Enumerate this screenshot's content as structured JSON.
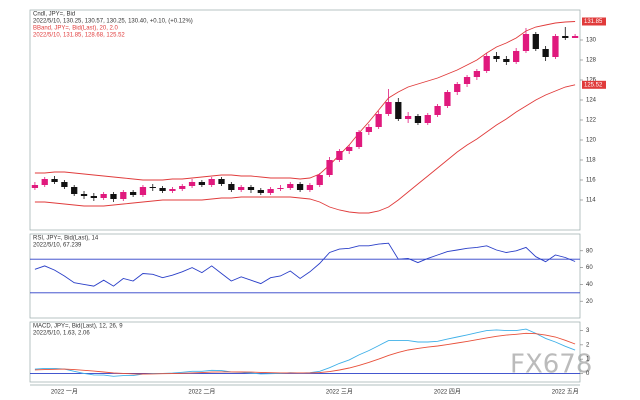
{
  "chart_data": [
    {
      "type": "candlestick",
      "title": "Cndl, JPY=, Bid",
      "subtitle": "2022/5/10, 130.25, 130.57, 130.25, 130.40, +0.10, (+0.12%)",
      "up_color": "#e0197d",
      "down_color": "#111111",
      "categories": [
        null,
        null,
        null,
        "2022 一月",
        null,
        null,
        null,
        null,
        null,
        null,
        null,
        null,
        null,
        null,
        null,
        null,
        null,
        "2022 二月",
        null,
        null,
        null,
        null,
        null,
        null,
        null,
        null,
        null,
        null,
        null,
        null,
        null,
        "2022 三月",
        null,
        null,
        null,
        null,
        null,
        null,
        null,
        null,
        null,
        null,
        "2022 四月",
        null,
        null,
        null,
        null,
        null,
        null,
        null,
        null,
        null,
        null,
        null,
        "2022 五月",
        null
      ],
      "open": [
        115.2,
        115.5,
        116.1,
        115.8,
        115.3,
        114.6,
        114.4,
        114.2,
        114.6,
        114.1,
        114.8,
        114.5,
        115.3,
        115.2,
        114.9,
        115.1,
        115.4,
        115.8,
        115.5,
        116.1,
        115.6,
        115.0,
        115.3,
        115.0,
        114.7,
        115.1,
        115.2,
        115.6,
        115.0,
        115.5,
        116.5,
        118.0,
        118.9,
        119.3,
        120.8,
        121.3,
        122.6,
        123.8,
        122.1,
        122.4,
        121.7,
        122.5,
        123.4,
        124.8,
        125.6,
        126.3,
        126.9,
        128.4,
        128.1,
        127.8,
        128.9,
        130.6,
        129.1,
        128.3,
        130.4,
        130.2
      ],
      "high": [
        115.8,
        116.3,
        116.4,
        116.0,
        115.5,
        114.9,
        114.7,
        114.8,
        114.8,
        115.0,
        115.0,
        115.5,
        115.6,
        115.4,
        115.3,
        115.6,
        116.1,
        116.0,
        116.3,
        116.3,
        115.8,
        115.5,
        115.5,
        115.2,
        115.3,
        115.5,
        115.8,
        115.8,
        115.7,
        116.7,
        118.3,
        119.1,
        119.5,
        121.0,
        121.6,
        122.9,
        125.1,
        124.2,
        122.8,
        122.6,
        122.7,
        123.6,
        125.0,
        125.8,
        126.5,
        127.1,
        128.7,
        128.8,
        128.4,
        129.2,
        131.2,
        130.8,
        129.4,
        130.6,
        131.3,
        130.6
      ],
      "low": [
        115.0,
        115.3,
        115.6,
        115.1,
        114.4,
        114.1,
        113.9,
        114.0,
        113.8,
        113.9,
        114.3,
        114.3,
        114.9,
        114.7,
        114.7,
        114.9,
        115.2,
        115.3,
        115.3,
        115.4,
        114.8,
        114.8,
        114.7,
        114.5,
        114.5,
        114.9,
        115.0,
        114.8,
        114.8,
        115.3,
        116.3,
        117.8,
        118.6,
        119.1,
        120.5,
        121.1,
        122.4,
        121.9,
        121.7,
        121.5,
        121.5,
        122.3,
        123.2,
        124.5,
        125.3,
        126.0,
        126.7,
        127.8,
        127.5,
        127.6,
        128.7,
        128.9,
        127.9,
        128.1,
        130.0,
        130.2
      ],
      "close": [
        115.5,
        116.1,
        115.8,
        115.3,
        114.6,
        114.4,
        114.2,
        114.6,
        114.1,
        114.8,
        114.5,
        115.3,
        115.2,
        114.9,
        115.1,
        115.4,
        115.8,
        115.5,
        116.1,
        115.6,
        115.0,
        115.3,
        115.0,
        114.7,
        115.1,
        115.2,
        115.6,
        115.0,
        115.5,
        116.5,
        118.0,
        118.9,
        119.3,
        120.8,
        121.3,
        122.6,
        123.8,
        122.1,
        122.4,
        121.7,
        122.5,
        123.4,
        124.8,
        125.6,
        126.3,
        126.9,
        128.4,
        128.1,
        127.8,
        128.9,
        130.6,
        129.1,
        128.3,
        130.4,
        130.2,
        130.4
      ],
      "bbands": {
        "name": "BBand, JPY=, Bid(Last), 20, 2.0",
        "label": "2022/5/10, 131.85, 128.68, 125.52",
        "color": "#e03b3b",
        "upper": [
          116.7,
          116.7,
          116.8,
          116.8,
          116.7,
          116.6,
          116.5,
          116.4,
          116.3,
          116.2,
          116.1,
          116.0,
          116.0,
          116.0,
          116.1,
          116.1,
          116.2,
          116.3,
          116.4,
          116.5,
          116.5,
          116.4,
          116.4,
          116.3,
          116.2,
          116.2,
          116.2,
          116.1,
          116.2,
          116.6,
          117.5,
          118.5,
          119.5,
          120.7,
          121.8,
          123.0,
          124.2,
          124.8,
          125.3,
          125.6,
          125.9,
          126.2,
          126.6,
          127.0,
          127.5,
          128.0,
          128.7,
          129.3,
          129.7,
          130.2,
          130.9,
          131.3,
          131.5,
          131.7,
          131.8,
          131.85
        ],
        "lower": [
          113.8,
          113.8,
          113.7,
          113.6,
          113.5,
          113.4,
          113.4,
          113.4,
          113.5,
          113.6,
          113.7,
          113.8,
          113.9,
          114.0,
          114.0,
          114.0,
          114.0,
          114.0,
          114.1,
          114.2,
          114.2,
          114.3,
          114.3,
          114.3,
          114.3,
          114.3,
          114.3,
          114.2,
          114.1,
          113.8,
          113.3,
          113.0,
          112.8,
          112.7,
          112.7,
          112.9,
          113.3,
          114.0,
          114.8,
          115.6,
          116.4,
          117.2,
          118.0,
          118.8,
          119.5,
          120.1,
          120.8,
          121.5,
          122.1,
          122.8,
          123.4,
          124.0,
          124.5,
          124.9,
          125.3,
          125.52
        ]
      },
      "ylim": [
        111,
        133
      ],
      "yticks": [
        114,
        116,
        118,
        120,
        122,
        124,
        126,
        128,
        130
      ],
      "watermark": "FX678"
    },
    {
      "type": "line",
      "title": "RSI, JPY=, Bid(Last), 14",
      "subtitle": "2022/5/10, 67.239",
      "series": [
        {
          "color": "#2a3fc8",
          "values": [
            58,
            62,
            57,
            50,
            42,
            40,
            38,
            45,
            38,
            47,
            44,
            53,
            52,
            48,
            51,
            55,
            60,
            54,
            62,
            53,
            44,
            49,
            45,
            41,
            48,
            50,
            56,
            47,
            55,
            65,
            78,
            82,
            83,
            86,
            86,
            88,
            89,
            70,
            71,
            66,
            71,
            75,
            79,
            81,
            83,
            84,
            86,
            81,
            78,
            80,
            84,
            73,
            67,
            75,
            72,
            67.239
          ]
        }
      ],
      "ref_lines": [
        70,
        30
      ],
      "ref_color": "#2a3fc8",
      "ylim": [
        0,
        100
      ],
      "yticks": [
        20,
        40,
        60,
        80
      ]
    },
    {
      "type": "line",
      "title": "MACD, JPY=, Bid(Last), 12, 26, 9",
      "subtitle": "2022/5/10, 1.63, 2.06",
      "series": [
        {
          "color": "#3fb0e8",
          "values": [
            0.3,
            0.35,
            0.35,
            0.3,
            0.15,
            0.0,
            -0.1,
            -0.12,
            -0.2,
            -0.15,
            -0.15,
            -0.05,
            0.0,
            0.0,
            0.02,
            0.08,
            0.15,
            0.15,
            0.22,
            0.2,
            0.1,
            0.08,
            0.03,
            -0.03,
            -0.02,
            0.0,
            0.05,
            0.02,
            0.05,
            0.15,
            0.4,
            0.7,
            0.95,
            1.3,
            1.6,
            1.95,
            2.3,
            2.3,
            2.3,
            2.2,
            2.2,
            2.25,
            2.4,
            2.55,
            2.7,
            2.85,
            3.0,
            3.05,
            3.0,
            3.0,
            3.1,
            2.8,
            2.45,
            2.2,
            1.9,
            1.63
          ]
        },
        {
          "color": "#e8503a",
          "values": [
            0.25,
            0.27,
            0.29,
            0.3,
            0.27,
            0.22,
            0.16,
            0.1,
            0.04,
            0.0,
            -0.03,
            -0.04,
            -0.03,
            -0.02,
            -0.01,
            0.01,
            0.04,
            0.06,
            0.09,
            0.11,
            0.11,
            0.1,
            0.09,
            0.07,
            0.05,
            0.04,
            0.04,
            0.04,
            0.04,
            0.06,
            0.13,
            0.24,
            0.38,
            0.56,
            0.77,
            1.0,
            1.26,
            1.47,
            1.64,
            1.75,
            1.84,
            1.92,
            2.02,
            2.13,
            2.24,
            2.36,
            2.49,
            2.6,
            2.68,
            2.74,
            2.81,
            2.78,
            2.68,
            2.55,
            2.32,
            2.06
          ]
        }
      ],
      "ref_lines": [
        0
      ],
      "ref_color": "#2a3fc8",
      "ylim": [
        -0.6,
        3.6
      ],
      "yticks": [
        0,
        1,
        2,
        3
      ]
    }
  ]
}
